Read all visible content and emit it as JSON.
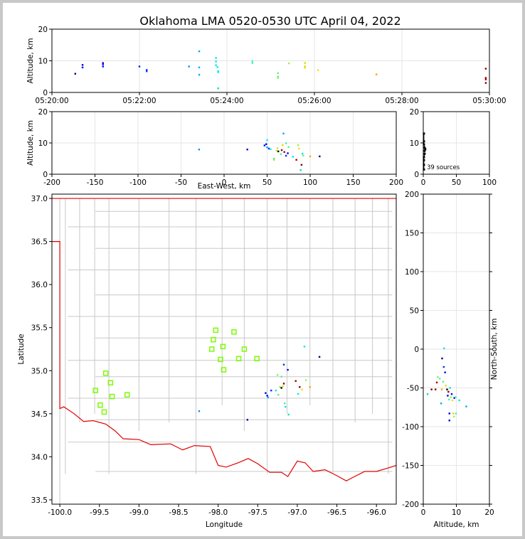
{
  "title": "Oklahoma LMA 0520-0530 UTC April 04, 2022",
  "colors": {
    "axis": "#000000",
    "grid": "#e6e6e6",
    "county": "#c8c8c8",
    "state_border": "#e00000",
    "station": "#7cfc00",
    "frame": "#c8c8c8"
  },
  "chart_data": [
    {
      "panel": "time-altitude",
      "type": "scatter",
      "xlabel": "",
      "ylabel": "Altitude, km",
      "xlim": [
        "05:20:00",
        "05:30:00"
      ],
      "ylim": [
        0,
        20
      ],
      "x_ticks": [
        "05:20:00",
        "05:22:00",
        "05:24:00",
        "05:26:00",
        "05:28:00",
        "05:30:00"
      ],
      "y_ticks": [
        0,
        10,
        20
      ],
      "color_encoding": "time",
      "points": [
        {
          "t": "05:20:32",
          "alt": 5.9,
          "color": "#00008b"
        },
        {
          "t": "05:20:42",
          "alt": 7.9,
          "color": "#0000cd"
        },
        {
          "t": "05:20:42",
          "alt": 8.7,
          "color": "#0000cd"
        },
        {
          "t": "05:21:10",
          "alt": 9.3,
          "color": "#0000cd"
        },
        {
          "t": "05:21:10",
          "alt": 8.9,
          "color": "#0000ff"
        },
        {
          "t": "05:21:10",
          "alt": 8.2,
          "color": "#0000ff"
        },
        {
          "t": "05:22:00",
          "alt": 8.2,
          "color": "#0020ff"
        },
        {
          "t": "05:22:10",
          "alt": 6.7,
          "color": "#0030ff"
        },
        {
          "t": "05:22:10",
          "alt": 7.1,
          "color": "#0030ff"
        },
        {
          "t": "05:23:08",
          "alt": 8.2,
          "color": "#0090ff"
        },
        {
          "t": "05:23:22",
          "alt": 13.0,
          "color": "#00a8ff"
        },
        {
          "t": "05:23:22",
          "alt": 7.9,
          "color": "#00a8ff"
        },
        {
          "t": "05:23:22",
          "alt": 5.6,
          "color": "#00a8ff"
        },
        {
          "t": "05:23:45",
          "alt": 10.9,
          "color": "#00e8e8"
        },
        {
          "t": "05:23:45",
          "alt": 9.8,
          "color": "#00e8e8"
        },
        {
          "t": "05:23:45",
          "alt": 8.6,
          "color": "#00e8e8"
        },
        {
          "t": "05:23:47",
          "alt": 8.0,
          "color": "#00e8e8"
        },
        {
          "t": "05:23:48",
          "alt": 6.7,
          "color": "#00e8e8"
        },
        {
          "t": "05:23:48",
          "alt": 6.4,
          "color": "#00e8e8"
        },
        {
          "t": "05:23:48",
          "alt": 1.3,
          "color": "#00e0c0"
        },
        {
          "t": "05:24:35",
          "alt": 9.9,
          "color": "#40f0c0"
        },
        {
          "t": "05:24:35",
          "alt": 9.3,
          "color": "#40f0c0"
        },
        {
          "t": "05:25:10",
          "alt": 6.1,
          "color": "#60f080"
        },
        {
          "t": "05:25:10",
          "alt": 5.0,
          "color": "#60f080"
        },
        {
          "t": "05:25:10",
          "alt": 4.6,
          "color": "#80f060"
        },
        {
          "t": "05:25:25",
          "alt": 9.2,
          "color": "#a0f040"
        },
        {
          "t": "05:25:47",
          "alt": 9.3,
          "color": "#d0e000"
        },
        {
          "t": "05:25:47",
          "alt": 8.3,
          "color": "#e0e000"
        },
        {
          "t": "05:25:47",
          "alt": 7.8,
          "color": "#e0e000"
        },
        {
          "t": "05:26:05",
          "alt": 7.0,
          "color": "#f0e000"
        },
        {
          "t": "05:27:25",
          "alt": 5.7,
          "color": "#ffa000"
        },
        {
          "t": "05:29:55",
          "alt": 7.5,
          "color": "#8b0000"
        },
        {
          "t": "05:29:55",
          "alt": 4.6,
          "color": "#a00000"
        },
        {
          "t": "05:29:55",
          "alt": 4.1,
          "color": "#b00000"
        },
        {
          "t": "05:29:55",
          "alt": 3.0,
          "color": "#800000"
        }
      ]
    },
    {
      "panel": "east-west-altitude",
      "type": "scatter",
      "xlabel": "East-West, km",
      "ylabel": "Altitude, km",
      "xlim": [
        -200,
        200
      ],
      "ylim": [
        0,
        20
      ],
      "x_ticks": [
        -200,
        -150,
        -100,
        -50,
        0,
        50,
        100,
        150,
        200
      ],
      "y_ticks": [
        0,
        10,
        20
      ],
      "points": [
        {
          "x": -29,
          "y": 7.9,
          "color": "#0090ff"
        },
        {
          "x": 27,
          "y": 7.9,
          "color": "#0000cd"
        },
        {
          "x": 47,
          "y": 9.2,
          "color": "#0000cd"
        },
        {
          "x": 49,
          "y": 9.6,
          "color": "#0000ff"
        },
        {
          "x": 50,
          "y": 10.9,
          "color": "#00e8e8"
        },
        {
          "x": 50,
          "y": 8.6,
          "color": "#00a8ff"
        },
        {
          "x": 52,
          "y": 8.2,
          "color": "#0030ff"
        },
        {
          "x": 54,
          "y": 8.0,
          "color": "#00e8e8"
        },
        {
          "x": 58,
          "y": 5.0,
          "color": "#60f080"
        },
        {
          "x": 58,
          "y": 4.6,
          "color": "#80f060"
        },
        {
          "x": 61,
          "y": 7.5,
          "color": "#a0f040"
        },
        {
          "x": 62,
          "y": 8.3,
          "color": "#e0e000"
        },
        {
          "x": 63,
          "y": 7.3,
          "color": "#000000"
        },
        {
          "x": 66,
          "y": 6.4,
          "color": "#40f0c0"
        },
        {
          "x": 67,
          "y": 7.7,
          "color": "#8b0000"
        },
        {
          "x": 68,
          "y": 9.3,
          "color": "#d0e000"
        },
        {
          "x": 69,
          "y": 13.0,
          "color": "#00a8ff"
        },
        {
          "x": 70,
          "y": 7.1,
          "color": "#b00000"
        },
        {
          "x": 72,
          "y": 5.9,
          "color": "#0030ff"
        },
        {
          "x": 72,
          "y": 9.9,
          "color": "#40f0c0"
        },
        {
          "x": 74,
          "y": 6.7,
          "color": "#0000ff"
        },
        {
          "x": 75,
          "y": 8.7,
          "color": "#60f080"
        },
        {
          "x": 80,
          "y": 5.6,
          "color": "#00e8e8"
        },
        {
          "x": 84,
          "y": 4.6,
          "color": "#a00000"
        },
        {
          "x": 86,
          "y": 9.3,
          "color": "#a0f040"
        },
        {
          "x": 87,
          "y": 8.2,
          "color": "#f0e000"
        },
        {
          "x": 89,
          "y": 1.3,
          "color": "#00e0c0"
        },
        {
          "x": 90,
          "y": 3.0,
          "color": "#800000"
        },
        {
          "x": 91,
          "y": 6.6,
          "color": "#00e8e8"
        },
        {
          "x": 92,
          "y": 6.0,
          "color": "#60f080"
        },
        {
          "x": 100,
          "y": 5.7,
          "color": "#ffa000"
        },
        {
          "x": 111,
          "y": 5.7,
          "color": "#00008b"
        }
      ]
    },
    {
      "panel": "altitude-histogram",
      "type": "scatter",
      "xlabel": "",
      "ylabel": "",
      "xlim": [
        0,
        100
      ],
      "ylim": [
        0,
        20
      ],
      "x_ticks": [
        0,
        50,
        100
      ],
      "y_ticks": [
        0,
        10,
        20
      ],
      "annotation": "39 sources",
      "points": [
        {
          "x": 1,
          "y": 1.5
        },
        {
          "x": 1,
          "y": 3.0
        },
        {
          "x": 1,
          "y": 4.5
        },
        {
          "x": 1,
          "y": 5.5
        },
        {
          "x": 2,
          "y": 6.5
        },
        {
          "x": 2,
          "y": 7.5
        },
        {
          "x": 3,
          "y": 8.0
        },
        {
          "x": 2,
          "y": 8.5
        },
        {
          "x": 1,
          "y": 9.5
        },
        {
          "x": 1,
          "y": 10.5
        },
        {
          "x": 1,
          "y": 13.0
        }
      ]
    },
    {
      "panel": "plan-view",
      "type": "scatter",
      "xlabel": "Longitude",
      "ylabel": "Latitude",
      "xlim": [
        -100.1,
        -95.75
      ],
      "ylim": [
        33.45,
        37.05
      ],
      "x_ticks": [
        -100.0,
        -99.5,
        -99.0,
        -98.5,
        -98.0,
        -97.5,
        -97.0,
        -96.5,
        -96.0
      ],
      "y_ticks": [
        33.5,
        34.0,
        34.5,
        35.0,
        35.5,
        36.0,
        36.5,
        37.0
      ],
      "stations": [
        [
          -98.03,
          35.47
        ],
        [
          -97.8,
          35.45
        ],
        [
          -98.06,
          35.36
        ],
        [
          -97.94,
          35.28
        ],
        [
          -98.08,
          35.25
        ],
        [
          -97.67,
          35.25
        ],
        [
          -97.74,
          35.14
        ],
        [
          -97.51,
          35.14
        ],
        [
          -97.97,
          35.13
        ],
        [
          -97.93,
          35.01
        ],
        [
          -99.42,
          34.97
        ],
        [
          -99.36,
          34.86
        ],
        [
          -99.55,
          34.77
        ],
        [
          -99.15,
          34.72
        ],
        [
          -99.34,
          34.7
        ],
        [
          -99.49,
          34.6
        ],
        [
          -99.44,
          34.52
        ]
      ],
      "points": [
        {
          "lon": -98.24,
          "lat": 34.53,
          "color": "#0090ff"
        },
        {
          "lon": -97.63,
          "lat": 34.43,
          "color": "#0000cd"
        },
        {
          "lon": -97.4,
          "lat": 34.74,
          "color": "#0000cd"
        },
        {
          "lon": -97.38,
          "lat": 34.71,
          "color": "#0000ff"
        },
        {
          "lon": -97.37,
          "lat": 34.69,
          "color": "#00a8ff"
        },
        {
          "lon": -97.33,
          "lat": 34.77,
          "color": "#0030ff"
        },
        {
          "lon": -97.27,
          "lat": 34.77,
          "color": "#00e8e8"
        },
        {
          "lon": -97.24,
          "lat": 34.72,
          "color": "#60f080"
        },
        {
          "lon": -97.22,
          "lat": 34.81,
          "color": "#a0f040"
        },
        {
          "lon": -97.2,
          "lat": 34.8,
          "color": "#000000"
        },
        {
          "lon": -97.18,
          "lat": 34.82,
          "color": "#e0e000"
        },
        {
          "lon": -97.17,
          "lat": 34.85,
          "color": "#8b0000"
        },
        {
          "lon": -97.16,
          "lat": 34.62,
          "color": "#40f0c0"
        },
        {
          "lon": -97.15,
          "lat": 34.58,
          "color": "#00e8e8"
        },
        {
          "lon": -97.17,
          "lat": 35.07,
          "color": "#0030ff"
        },
        {
          "lon": -97.11,
          "lat": 34.49,
          "color": "#00e0c0"
        },
        {
          "lon": -97.12,
          "lat": 35.01,
          "color": "#0000ff"
        },
        {
          "lon": -97.25,
          "lat": 34.95,
          "color": "#80f060"
        },
        {
          "lon": -97.2,
          "lat": 34.93,
          "color": "#60f080"
        },
        {
          "lon": -97.02,
          "lat": 34.88,
          "color": "#a00000"
        },
        {
          "lon": -96.97,
          "lat": 34.81,
          "color": "#800000"
        },
        {
          "lon": -96.94,
          "lat": 34.78,
          "color": "#f0e000"
        },
        {
          "lon": -96.91,
          "lat": 35.28,
          "color": "#00e8e8"
        },
        {
          "lon": -96.89,
          "lat": 34.89,
          "color": "#a0f040"
        },
        {
          "lon": -96.84,
          "lat": 34.81,
          "color": "#ffa000"
        },
        {
          "lon": -96.72,
          "lat": 35.16,
          "color": "#00008b"
        },
        {
          "lon": -96.99,
          "lat": 34.73,
          "color": "#00e8e8"
        }
      ]
    },
    {
      "panel": "altitude-north-south",
      "type": "scatter",
      "xlabel": "Altitude, km",
      "ylabel": "North-South, km",
      "xlim": [
        0,
        20
      ],
      "ylim": [
        -200,
        200
      ],
      "x_ticks": [
        0,
        10,
        20
      ],
      "y_ticks": [
        -200,
        -150,
        -100,
        -50,
        0,
        50,
        100,
        150,
        200
      ],
      "points": [
        {
          "x": 1.3,
          "y": -58,
          "color": "#00e0c0"
        },
        {
          "x": 2.5,
          "y": -52,
          "color": "#800000"
        },
        {
          "x": 3.7,
          "y": -52,
          "color": "#8b0000"
        },
        {
          "x": 4.1,
          "y": -43,
          "color": "#a00000"
        },
        {
          "x": 4.4,
          "y": -36,
          "color": "#80f060"
        },
        {
          "x": 5.0,
          "y": -38,
          "color": "#60f080"
        },
        {
          "x": 5.4,
          "y": -70,
          "color": "#00a8ff"
        },
        {
          "x": 5.6,
          "y": -52,
          "color": "#ffa000"
        },
        {
          "x": 5.7,
          "y": -12,
          "color": "#00008b"
        },
        {
          "x": 6.0,
          "y": -42,
          "color": "#60f080"
        },
        {
          "x": 6.2,
          "y": -23,
          "color": "#0030ff"
        },
        {
          "x": 6.3,
          "y": 1,
          "color": "#00e8e8"
        },
        {
          "x": 6.6,
          "y": -30,
          "color": "#0000ff"
        },
        {
          "x": 6.8,
          "y": -47,
          "color": "#e0e000"
        },
        {
          "x": 7.2,
          "y": -52,
          "color": "#000000"
        },
        {
          "x": 7.4,
          "y": -60,
          "color": "#0000cd"
        },
        {
          "x": 7.6,
          "y": -55,
          "color": "#8b0000"
        },
        {
          "x": 7.8,
          "y": -65,
          "color": "#40f0c0"
        },
        {
          "x": 7.9,
          "y": -83,
          "color": "#0000cd"
        },
        {
          "x": 7.9,
          "y": -92,
          "color": "#0000cd"
        },
        {
          "x": 8.1,
          "y": -50,
          "color": "#00e8e8"
        },
        {
          "x": 8.3,
          "y": -62,
          "color": "#a0f040"
        },
        {
          "x": 8.6,
          "y": -58,
          "color": "#0000ff"
        },
        {
          "x": 8.8,
          "y": -66,
          "color": "#f0e000"
        },
        {
          "x": 9.1,
          "y": -83,
          "color": "#d0e000"
        },
        {
          "x": 9.3,
          "y": -87,
          "color": "#a0f040"
        },
        {
          "x": 9.4,
          "y": -63,
          "color": "#0000ff"
        },
        {
          "x": 9.8,
          "y": -62,
          "color": "#40f0c0"
        },
        {
          "x": 9.9,
          "y": -83,
          "color": "#40f0c0"
        },
        {
          "x": 10.9,
          "y": -66,
          "color": "#00e8e8"
        },
        {
          "x": 13.0,
          "y": -74,
          "color": "#00a8ff"
        }
      ]
    }
  ]
}
